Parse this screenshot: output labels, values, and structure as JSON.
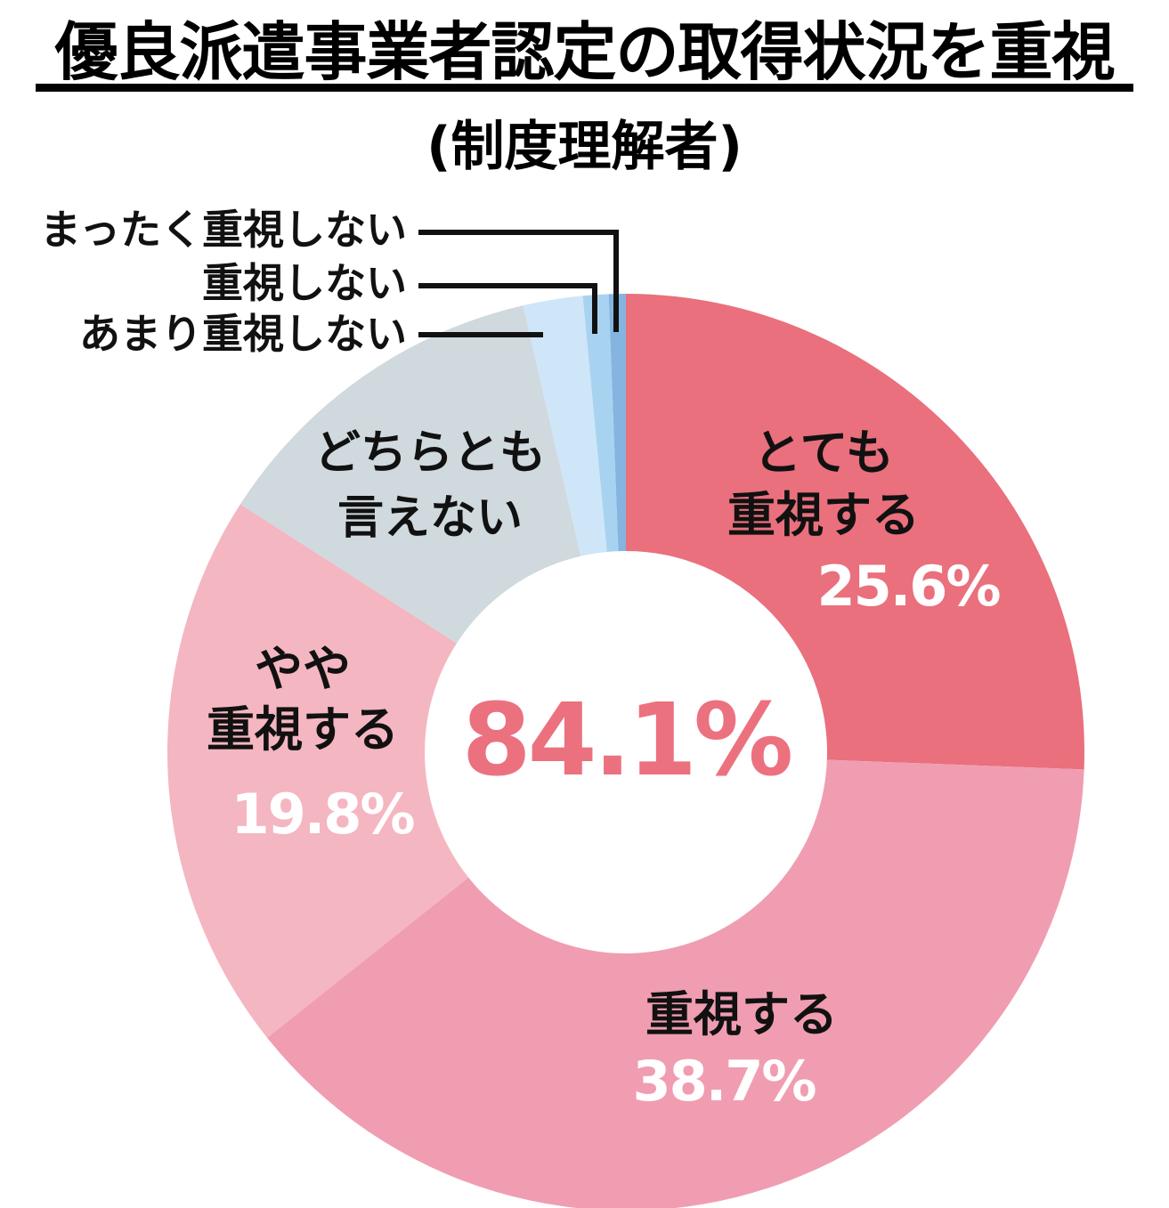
{
  "title": "優良派遣事業者認定の取得状況を重視",
  "subtitle": "(制度理解者)",
  "styles": {
    "center_value_color": "#ec717f",
    "label_color": "#111111",
    "callout_line_color": "#111111",
    "background": "#ffffff"
  },
  "chart_data": {
    "type": "pie",
    "donut": true,
    "title": "優良派遣事業者認定の取得状況を重視",
    "subtitle": "(制度理解者)",
    "legend_position": "none",
    "start_angle_deg": -90,
    "direction": "clockwise",
    "center_label": "84.1%",
    "center_label_meaning": "とても重視する+重視する+やや重視するの合計",
    "segments": [
      {
        "label": "とても重視する",
        "display_label": "とても\n重視する",
        "value": 25.6,
        "pct_label": "25.6%",
        "color": "#e9707c"
      },
      {
        "label": "重視する",
        "display_label": "重視する",
        "value": 38.7,
        "pct_label": "38.7%",
        "color": "#f09db1"
      },
      {
        "label": "やや重視する",
        "display_label": "やや\n重視する",
        "value": 19.8,
        "pct_label": "19.8%",
        "color": "#f4b6c1"
      },
      {
        "label": "どちらとも言えない",
        "display_label": "どちらとも\n言えない",
        "value": 12.3,
        "pct_label": "",
        "color": "#cfd9de"
      },
      {
        "label": "あまり重視しない",
        "display_label": "",
        "value": 2.1,
        "pct_label": "",
        "color": "#cfe6f8"
      },
      {
        "label": "重視しない",
        "display_label": "",
        "value": 0.9,
        "pct_label": "",
        "color": "#a8d3f0"
      },
      {
        "label": "まったく重視しない",
        "display_label": "",
        "value": 0.6,
        "pct_label": "",
        "color": "#85b4e0"
      }
    ]
  }
}
